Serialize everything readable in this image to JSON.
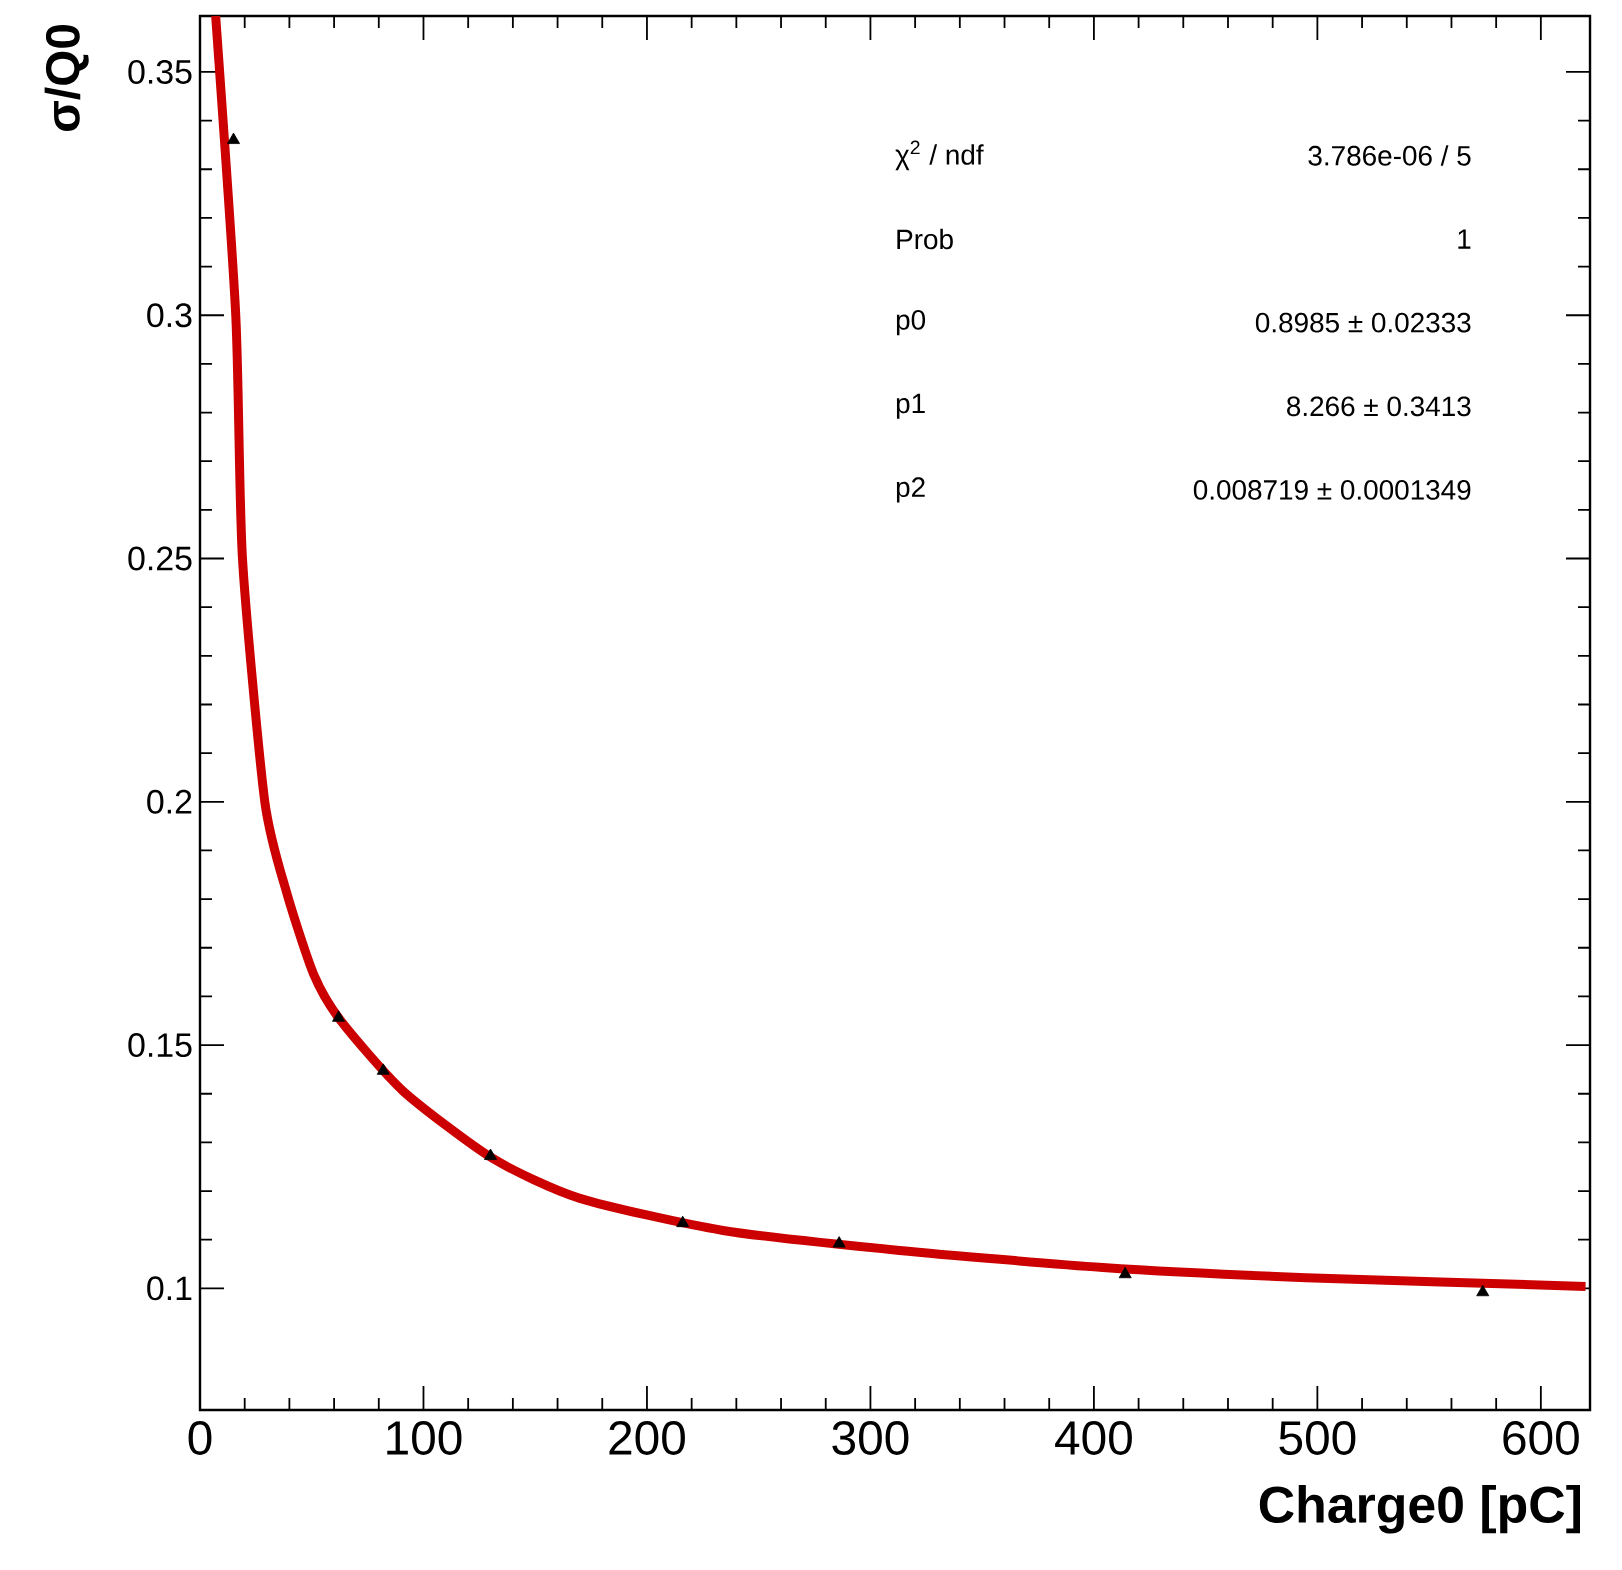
{
  "chart_data": {
    "type": "scatter",
    "xlabel": "Charge0 [pC]",
    "ylabel": "σ/Q0",
    "xlim": [
      0,
      622
    ],
    "ylim": [
      0.075,
      0.3615
    ],
    "xticks": [
      0,
      100,
      200,
      300,
      400,
      500,
      600
    ],
    "yticks": [
      0.1,
      0.15,
      0.2,
      0.25,
      0.3,
      0.35
    ],
    "series": [
      {
        "marker": "triangle",
        "color": "#000000",
        "x": [
          15,
          62,
          82,
          130,
          216,
          286,
          414,
          574
        ],
        "values": [
          0.336,
          0.1556,
          0.1447,
          0.1272,
          0.1134,
          0.1092,
          0.1029,
          0.0992
        ]
      },
      {
        "type": "line",
        "marker": "none",
        "line_style": "solid",
        "color": "#cc0000",
        "x": [
          7,
          16,
          19,
          29,
          39,
          51,
          63,
          91,
          131,
          170,
          234,
          313,
          404,
          495,
          620
        ],
        "values": [
          0.3615,
          0.3,
          0.25,
          0.2,
          0.181,
          0.1644,
          0.155,
          0.1405,
          0.1267,
          0.1185,
          0.1119,
          0.1078,
          0.1043,
          0.1022,
          0.1004
        ]
      }
    ],
    "annotations": [
      "χ$^{2}$ / ndf",
      "3.786e-06 / 5",
      "Prob",
      "1",
      "p0",
      "0.8985 ± 0.02333",
      "p1",
      "8.266 ± 0.3413",
      "p2",
      "0.008719 ± 0.0001349"
    ]
  }
}
